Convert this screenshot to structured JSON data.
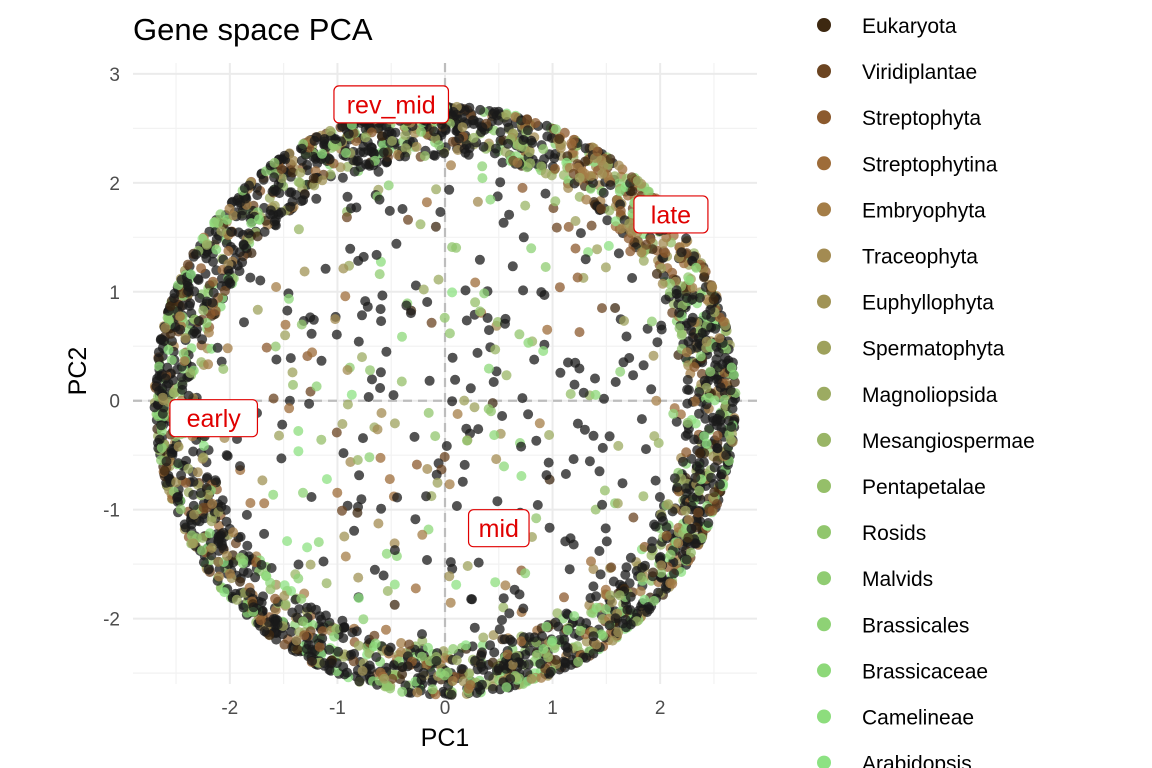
{
  "chart_data": {
    "type": "scatter",
    "title": "Gene space PCA",
    "xlabel": "PC1",
    "ylabel": "PC2",
    "xlim": [
      -2.9,
      2.9
    ],
    "ylim": [
      -2.6,
      3.1
    ],
    "x_ticks": [
      -2,
      -1,
      0,
      1,
      2
    ],
    "y_ticks": [
      -2,
      -1,
      0,
      1,
      2,
      3
    ],
    "grid": true,
    "reference_lines": {
      "x": 0,
      "y": 0,
      "style": "dashed"
    },
    "point_cloud": {
      "shape": "disc",
      "radius": 2.7,
      "dense_rim_width": 0.45,
      "approx_points": 3200
    },
    "legend": {
      "placement": "right",
      "entries": [
        {
          "name": "Eukaryota",
          "color": "#3d2811"
        },
        {
          "name": "Viridiplantae",
          "color": "#6b4421"
        },
        {
          "name": "Streptophyta",
          "color": "#8c5a2e"
        },
        {
          "name": "Streptophytina",
          "color": "#9e6c39"
        },
        {
          "name": "Embryophyta",
          "color": "#a47d47"
        },
        {
          "name": "Traceophyta",
          "color": "#a38b52"
        },
        {
          "name": "Euphyllophyta",
          "color": "#a09355"
        },
        {
          "name": "Spermatophyta",
          "color": "#9ea15c"
        },
        {
          "name": "Magnoliopsida",
          "color": "#9cab62"
        },
        {
          "name": "Mesangiospermae",
          "color": "#99b566"
        },
        {
          "name": "Pentapetalae",
          "color": "#95bf69"
        },
        {
          "name": "Rosids",
          "color": "#91c66d"
        },
        {
          "name": "Malvids",
          "color": "#90cc72"
        },
        {
          "name": "Brassicales",
          "color": "#8ed275"
        },
        {
          "name": "Brassicaceae",
          "color": "#8dd879"
        },
        {
          "name": "Camelineae",
          "color": "#8ddd7d"
        },
        {
          "name": "Arabidopsis",
          "color": "#8de283"
        }
      ]
    },
    "annotations": [
      {
        "label": "rev_mid",
        "x": -0.5,
        "y": 2.72
      },
      {
        "label": "late",
        "x": 2.1,
        "y": 1.71
      },
      {
        "label": "early",
        "x": -2.15,
        "y": -0.16
      },
      {
        "label": "mid",
        "x": 0.5,
        "y": -1.17
      }
    ],
    "colors": {
      "point_black": "#1a1a1a",
      "annotation": "#e00000",
      "grid": "#ebebeb",
      "refline": "#bdbdbd"
    }
  }
}
